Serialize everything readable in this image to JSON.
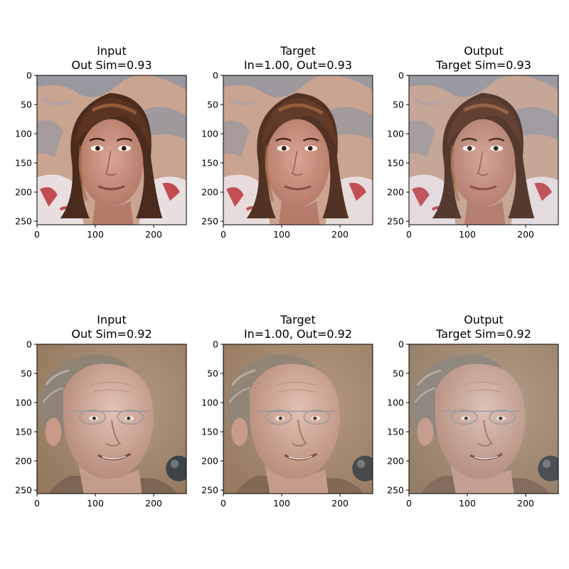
{
  "chart_data": {
    "type": "image-grid",
    "panels": [
      {
        "row": 0,
        "col": 0,
        "title_line1": "Input",
        "title_line2": "Out Sim=0.93",
        "subject": "woman-face",
        "variant": "input",
        "x_ticks": [
          0,
          100,
          200
        ],
        "y_ticks": [
          0,
          50,
          100,
          150,
          200,
          250
        ],
        "xlim": [
          0,
          256
        ],
        "ylim": [
          256,
          0
        ]
      },
      {
        "row": 0,
        "col": 1,
        "title_line1": "Target",
        "title_line2": "In=1.00, Out=0.93",
        "subject": "woman-face",
        "variant": "target",
        "x_ticks": [
          0,
          100,
          200
        ],
        "y_ticks": [
          0,
          50,
          100,
          150,
          200,
          250
        ],
        "xlim": [
          0,
          256
        ],
        "ylim": [
          256,
          0
        ]
      },
      {
        "row": 0,
        "col": 2,
        "title_line1": "Output",
        "title_line2": "Target Sim=0.93",
        "subject": "woman-face",
        "variant": "output",
        "x_ticks": [
          0,
          100,
          200
        ],
        "y_ticks": [
          0,
          50,
          100,
          150,
          200,
          250
        ],
        "xlim": [
          0,
          256
        ],
        "ylim": [
          256,
          0
        ]
      },
      {
        "row": 1,
        "col": 0,
        "title_line1": "Input",
        "title_line2": "Out Sim=0.92",
        "subject": "man-face",
        "variant": "input",
        "x_ticks": [
          0,
          100,
          200
        ],
        "y_ticks": [
          0,
          50,
          100,
          150,
          200,
          250
        ],
        "xlim": [
          0,
          256
        ],
        "ylim": [
          256,
          0
        ]
      },
      {
        "row": 1,
        "col": 1,
        "title_line1": "Target",
        "title_line2": "In=1.00, Out=0.92",
        "subject": "man-face",
        "variant": "target",
        "x_ticks": [
          0,
          100,
          200
        ],
        "y_ticks": [
          0,
          50,
          100,
          150,
          200,
          250
        ],
        "xlim": [
          0,
          256
        ],
        "ylim": [
          256,
          0
        ]
      },
      {
        "row": 1,
        "col": 2,
        "title_line1": "Output",
        "title_line2": "Target Sim=0.92",
        "subject": "man-face",
        "variant": "output",
        "x_ticks": [
          0,
          100,
          200
        ],
        "y_ticks": [
          0,
          50,
          100,
          150,
          200,
          250
        ],
        "xlim": [
          0,
          256
        ],
        "ylim": [
          256,
          0
        ]
      }
    ]
  },
  "colors": {
    "woman_background": "#c9a491",
    "woman_background_alt": "#8d94a3",
    "woman_hair": "#4a2b1e",
    "woman_hair_highlight": "#a0633d",
    "woman_skin": "#c99280",
    "woman_shirt": "#e9dfe1",
    "woman_shirt_accent": "#c24a52",
    "man_background": "#a58a70",
    "man_hair": "#8d8377",
    "man_skin": "#d3b0a1",
    "man_glasses": "#9b9b9b",
    "microphone": "#3e4347"
  }
}
